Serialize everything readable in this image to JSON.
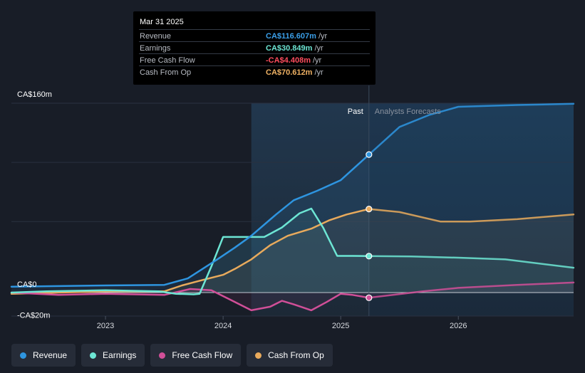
{
  "tooltip": {
    "date": "Mar 31 2025",
    "rows": [
      {
        "label": "Revenue",
        "value": "CA$116.607m",
        "unit": "/yr",
        "color": "#3b9fe8"
      },
      {
        "label": "Earnings",
        "value": "CA$30.849m",
        "unit": "/yr",
        "color": "#6de6d4"
      },
      {
        "label": "Free Cash Flow",
        "value": "-CA$4.408m",
        "unit": "/yr",
        "color": "#ff4d5e"
      },
      {
        "label": "Cash From Op",
        "value": "CA$70.612m",
        "unit": "/yr",
        "color": "#f0b264"
      }
    ]
  },
  "legend": [
    {
      "label": "Revenue",
      "color": "#2e95e0"
    },
    {
      "label": "Earnings",
      "color": "#6de6d4"
    },
    {
      "label": "Free Cash Flow",
      "color": "#d14f98"
    },
    {
      "label": "Cash From Op",
      "color": "#e8aa5c"
    }
  ],
  "chart_data": {
    "type": "line",
    "title": "",
    "xlabel": "",
    "ylabel": "",
    "ylim": [
      -20,
      160
    ],
    "xlim": [
      2022.2,
      2026.98
    ],
    "y_tick_labels": [
      {
        "value": 160,
        "label": "CA$160m"
      },
      {
        "value": 0,
        "label": "CA$0"
      },
      {
        "value": -20,
        "label": "-CA$20m"
      }
    ],
    "x_ticks": [
      {
        "value": 2023,
        "label": "2023"
      },
      {
        "value": 2024,
        "label": "2024"
      },
      {
        "value": 2025,
        "label": "2025"
      },
      {
        "value": 2026,
        "label": "2026"
      }
    ],
    "past_label": "Past",
    "forecast_label": "Analysts Forecasts",
    "divider_x": 2025.24,
    "highlight_start": 2024.24,
    "marker_x": 2025.24,
    "series": [
      {
        "name": "Revenue",
        "color": "#2e95e0",
        "points": [
          [
            2022.2,
            5
          ],
          [
            2022.6,
            5.5
          ],
          [
            2023.0,
            6
          ],
          [
            2023.5,
            6.5
          ],
          [
            2023.7,
            12
          ],
          [
            2023.95,
            28
          ],
          [
            2024.1,
            38
          ],
          [
            2024.24,
            48
          ],
          [
            2024.45,
            66
          ],
          [
            2024.6,
            78
          ],
          [
            2024.8,
            86
          ],
          [
            2025.0,
            95
          ],
          [
            2025.24,
            116.6
          ]
        ],
        "forecast": [
          [
            2025.24,
            116.6
          ],
          [
            2025.5,
            140
          ],
          [
            2025.75,
            150
          ],
          [
            2026.0,
            157
          ],
          [
            2026.5,
            158.5
          ],
          [
            2026.98,
            159.5
          ]
        ]
      },
      {
        "name": "Earnings",
        "color": "#6de6d4",
        "points": [
          [
            2022.2,
            0
          ],
          [
            2022.5,
            1
          ],
          [
            2023.0,
            2
          ],
          [
            2023.45,
            1
          ],
          [
            2023.6,
            -1
          ],
          [
            2023.75,
            -1.5
          ],
          [
            2023.8,
            -1
          ],
          [
            2023.9,
            22
          ],
          [
            2024.0,
            47
          ],
          [
            2024.24,
            47
          ],
          [
            2024.35,
            47
          ],
          [
            2024.5,
            55
          ],
          [
            2024.65,
            67
          ],
          [
            2024.75,
            71
          ],
          [
            2024.85,
            55
          ],
          [
            2024.97,
            31
          ],
          [
            2025.1,
            31
          ],
          [
            2025.24,
            30.8
          ]
        ],
        "forecast": [
          [
            2025.24,
            30.8
          ],
          [
            2025.6,
            30.5
          ],
          [
            2026.0,
            29.5
          ],
          [
            2026.4,
            28
          ],
          [
            2026.98,
            21
          ]
        ]
      },
      {
        "name": "Free Cash Flow",
        "color": "#d14f98",
        "points": [
          [
            2022.2,
            0
          ],
          [
            2022.6,
            -2
          ],
          [
            2023.0,
            -1
          ],
          [
            2023.5,
            -2
          ],
          [
            2023.72,
            3
          ],
          [
            2023.9,
            2
          ],
          [
            2024.0,
            -3
          ],
          [
            2024.1,
            -8
          ],
          [
            2024.24,
            -15
          ],
          [
            2024.4,
            -12
          ],
          [
            2024.5,
            -7
          ],
          [
            2024.6,
            -10
          ],
          [
            2024.75,
            -15
          ],
          [
            2024.88,
            -8
          ],
          [
            2025.0,
            -1
          ],
          [
            2025.1,
            -2
          ],
          [
            2025.24,
            -4.4
          ]
        ],
        "forecast": [
          [
            2025.24,
            -4.4
          ],
          [
            2025.7,
            1
          ],
          [
            2026.0,
            4
          ],
          [
            2026.5,
            6.5
          ],
          [
            2026.98,
            8.5
          ]
        ]
      },
      {
        "name": "Cash From Op",
        "color": "#e8aa5c",
        "points": [
          [
            2022.2,
            -1
          ],
          [
            2022.6,
            0
          ],
          [
            2023.0,
            1
          ],
          [
            2023.5,
            1
          ],
          [
            2023.65,
            6
          ],
          [
            2023.8,
            10
          ],
          [
            2024.0,
            15
          ],
          [
            2024.1,
            20
          ],
          [
            2024.24,
            28
          ],
          [
            2024.4,
            40
          ],
          [
            2024.55,
            48
          ],
          [
            2024.75,
            54
          ],
          [
            2024.9,
            61
          ],
          [
            2025.05,
            66
          ],
          [
            2025.24,
            70.6
          ]
        ],
        "forecast": [
          [
            2025.24,
            70.6
          ],
          [
            2025.5,
            68
          ],
          [
            2025.85,
            60
          ],
          [
            2026.1,
            60
          ],
          [
            2026.5,
            62
          ],
          [
            2026.98,
            66
          ]
        ]
      }
    ]
  }
}
